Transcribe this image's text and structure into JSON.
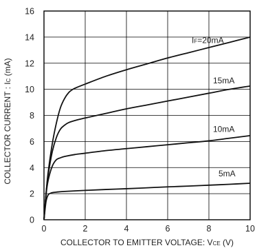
{
  "chart_data": {
    "type": "line",
    "xlabel": "COLLECTOR TO EMITTER  VOLTAGE: V",
    "xlabel_sub": "CE",
    "xlabel_unit": " (V)",
    "ylabel": "COLLECTOR CURRENT : I",
    "ylabel_sub": "C",
    "ylabel_unit": " (mA)",
    "xlim": [
      0,
      10
    ],
    "ylim": [
      0,
      16
    ],
    "x_ticks": [
      "0",
      "2",
      "4",
      "6",
      "8",
      "10"
    ],
    "y_ticks": [
      "0",
      "2",
      "4",
      "6",
      "8",
      "10",
      "12",
      "14",
      "16"
    ],
    "grid": true,
    "series": [
      {
        "name": "I",
        "name_sub": "F",
        "name_rest": "=20mA",
        "x": [
          0,
          0.1,
          0.2,
          0.4,
          0.6,
          0.8,
          1.0,
          1.2,
          1.4,
          1.6,
          2,
          3,
          4,
          5,
          6,
          7,
          8,
          9,
          10
        ],
        "y": [
          0,
          2.0,
          3.6,
          5.8,
          7.4,
          8.6,
          9.3,
          9.75,
          10.0,
          10.15,
          10.4,
          11.0,
          11.5,
          11.95,
          12.4,
          12.8,
          13.2,
          13.6,
          14.0
        ]
      },
      {
        "name": "15mA",
        "x": [
          0,
          0.1,
          0.2,
          0.4,
          0.6,
          0.8,
          1.0,
          1.2,
          1.6,
          2,
          3,
          4,
          5,
          6,
          7,
          8,
          9,
          10
        ],
        "y": [
          0,
          2.0,
          3.4,
          5.2,
          6.3,
          6.95,
          7.25,
          7.45,
          7.65,
          7.8,
          8.15,
          8.5,
          8.8,
          9.1,
          9.4,
          9.7,
          10.0,
          10.25
        ]
      },
      {
        "name": "10mA",
        "x": [
          0,
          0.1,
          0.2,
          0.4,
          0.6,
          0.8,
          1.0,
          1.5,
          2,
          3,
          4,
          5,
          6,
          7,
          8,
          9,
          10
        ],
        "y": [
          0,
          1.9,
          3.0,
          4.1,
          4.6,
          4.75,
          4.85,
          5.0,
          5.1,
          5.3,
          5.45,
          5.6,
          5.75,
          5.9,
          6.05,
          6.25,
          6.45
        ]
      },
      {
        "name": "5mA",
        "x": [
          0,
          0.1,
          0.2,
          0.3,
          0.4,
          0.6,
          1,
          2,
          3,
          4,
          5,
          6,
          7,
          8,
          9,
          10
        ],
        "y": [
          0,
          1.4,
          1.9,
          2.02,
          2.08,
          2.12,
          2.17,
          2.25,
          2.32,
          2.38,
          2.45,
          2.52,
          2.58,
          2.65,
          2.72,
          2.8
        ]
      }
    ]
  }
}
